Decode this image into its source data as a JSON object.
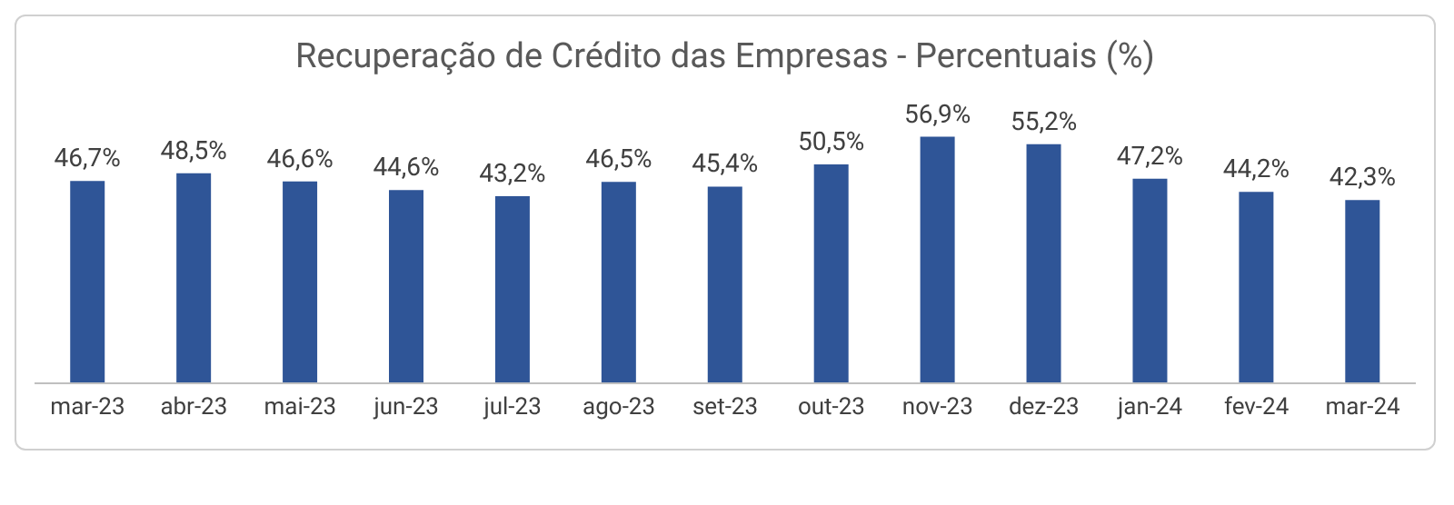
{
  "chart_data": {
    "type": "bar",
    "title": "Recuperação de Crédito das Empresas - Percentuais (%)",
    "categories": [
      "mar-23",
      "abr-23",
      "mai-23",
      "jun-23",
      "jul-23",
      "ago-23",
      "set-23",
      "out-23",
      "nov-23",
      "dez-23",
      "jan-24",
      "fev-24",
      "mar-24"
    ],
    "values": [
      46.7,
      48.5,
      46.6,
      44.6,
      43.2,
      46.5,
      45.4,
      50.5,
      56.9,
      55.2,
      47.2,
      44.2,
      42.3
    ],
    "value_labels": [
      "46,7%",
      "48,5%",
      "46,6%",
      "44,6%",
      "43,2%",
      "46,5%",
      "45,4%",
      "50,5%",
      "56,9%",
      "55,2%",
      "47,2%",
      "44,2%",
      "42,3%"
    ],
    "color": "#2f5597",
    "grid": false,
    "legend": false
  }
}
